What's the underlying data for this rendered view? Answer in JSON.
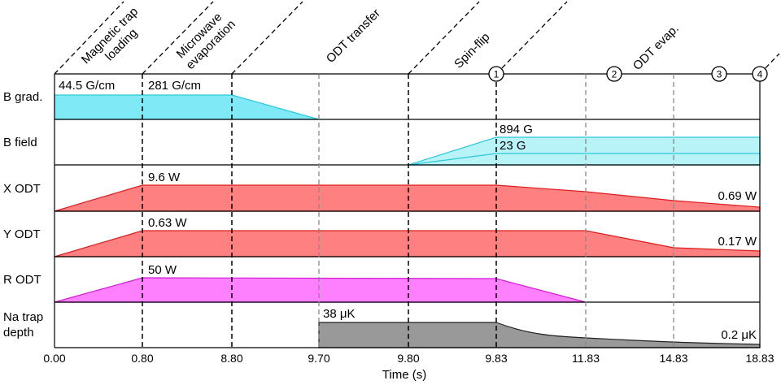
{
  "phases": [
    "Magnetic trap loading",
    "Microwave evaporation",
    "ODT transfer",
    "Spin-flip",
    "ODT evap."
  ],
  "phase_lines": [
    [
      "Magnetic trap",
      "loading"
    ],
    [
      "Microwave",
      "evaporation"
    ],
    [
      "ODT transfer"
    ],
    [
      "Spin-flip"
    ],
    [
      "ODT evap."
    ]
  ],
  "markers": [
    "1",
    "2",
    "3",
    "4"
  ],
  "rows": [
    {
      "label_lines": [
        "B grad."
      ],
      "color": "#7fe9f5",
      "stroke": "#2cc7d9"
    },
    {
      "label_lines": [
        "B field"
      ],
      "color": "#b8f3f8",
      "stroke": "#2cc7d9"
    },
    {
      "label_lines": [
        "X ODT"
      ],
      "color": "#ff8080",
      "stroke": "#d81e1e"
    },
    {
      "label_lines": [
        "Y ODT"
      ],
      "color": "#ff8080",
      "stroke": "#d81e1e"
    },
    {
      "label_lines": [
        "R ODT"
      ],
      "color": "#ff80ff",
      "stroke": "#d21ed2"
    },
    {
      "label_lines": [
        "Na trap",
        "depth"
      ],
      "color": "#999999",
      "stroke": "#222222"
    }
  ],
  "values": {
    "b_grad_start": "44.5 G/cm",
    "b_grad_peak": "281 G/cm",
    "b_field_high": "894 G",
    "b_field_low": "23 G",
    "x_odt_peak": "9.6 W",
    "x_odt_end": "0.69 W",
    "y_odt_peak": "0.63 W",
    "y_odt_end": "0.17 W",
    "r_odt_peak": "50 W",
    "trap_peak": "38 μK",
    "trap_end": "0.2 μK"
  },
  "x_ticks": [
    "0.00",
    "0.80",
    "8.80",
    "9.70",
    "9.80",
    "9.83",
    "11.83",
    "14.83",
    "18.83"
  ],
  "xlabel": "Time (s)"
}
